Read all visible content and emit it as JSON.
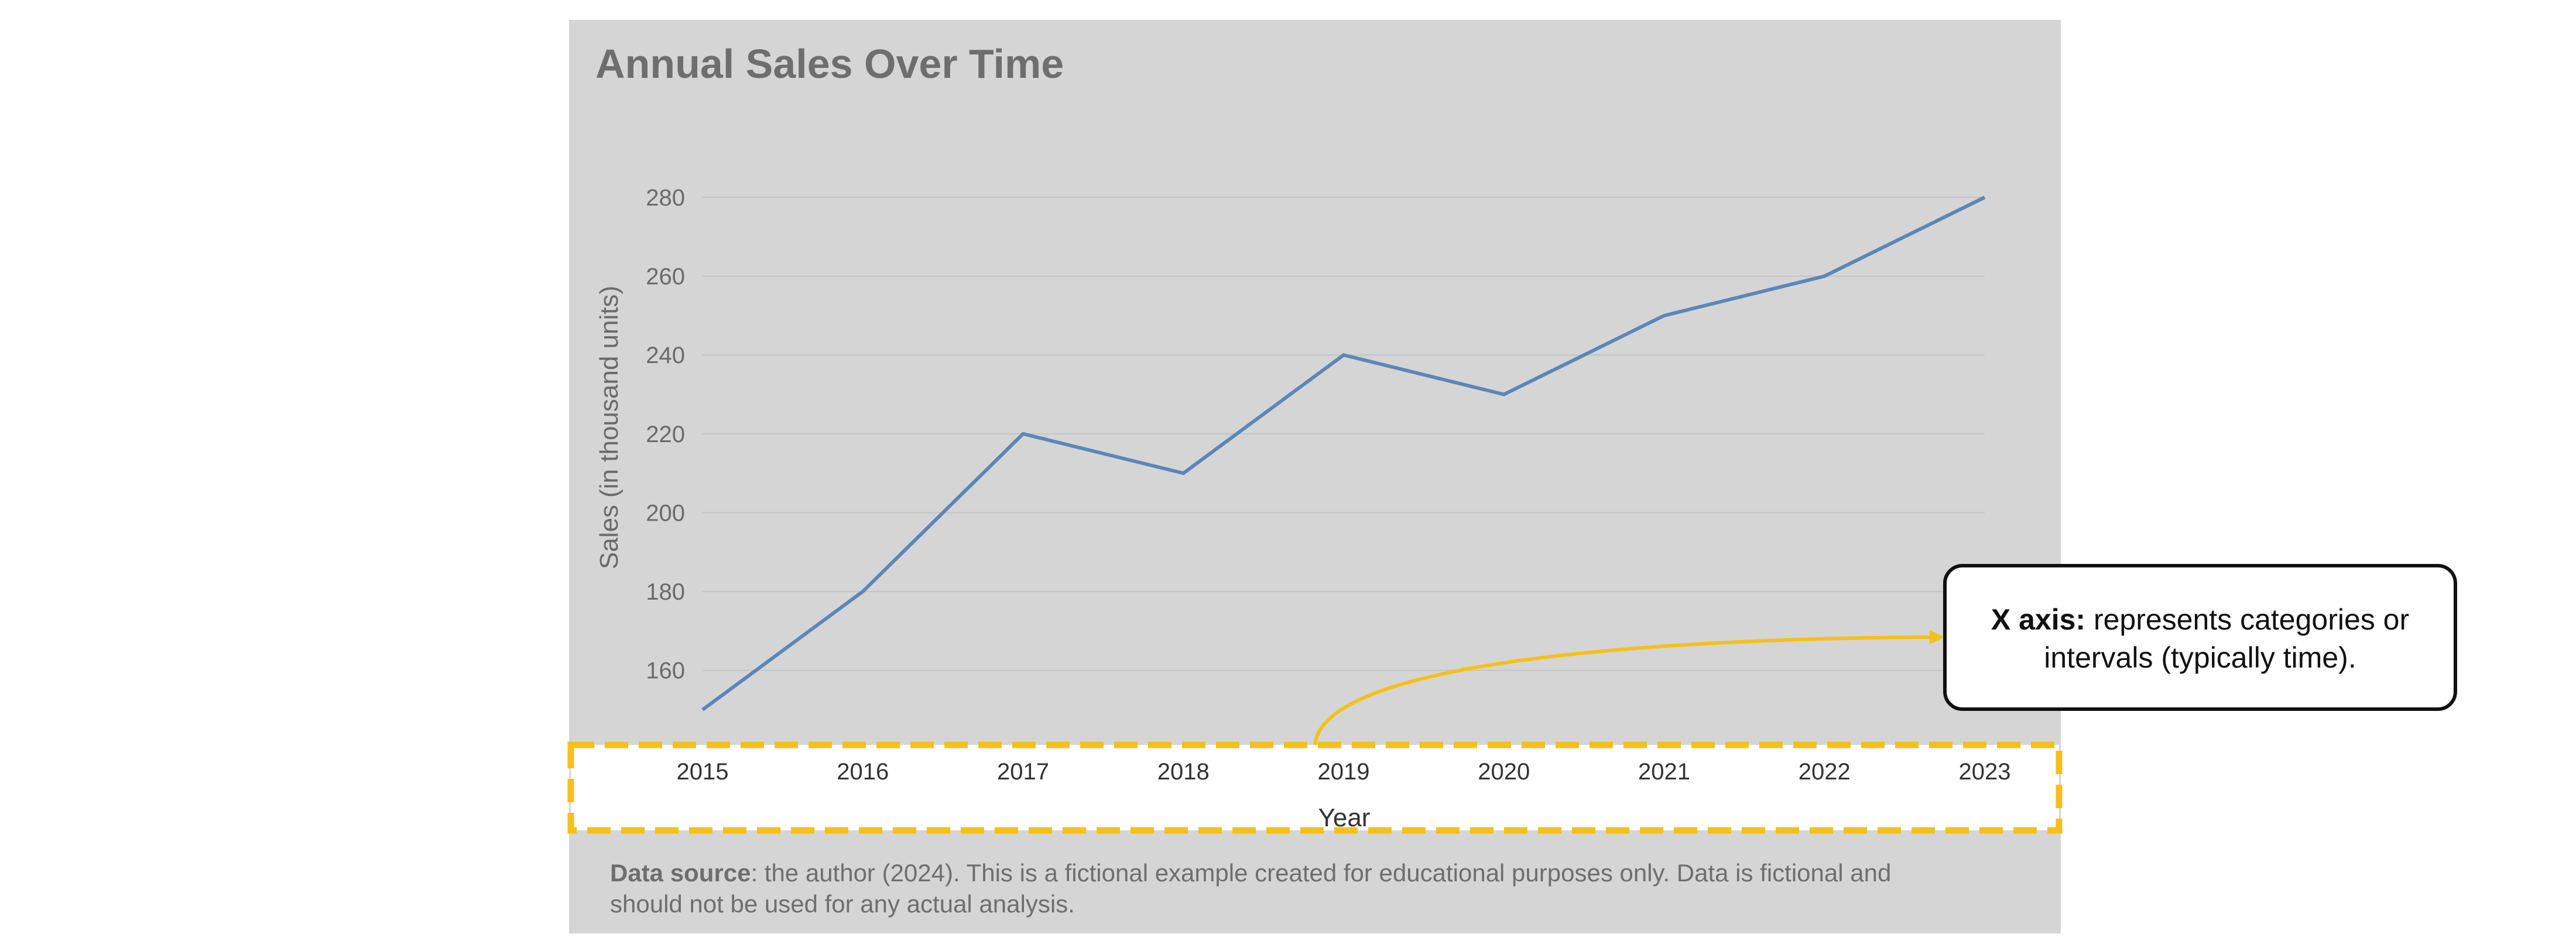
{
  "chart_data": {
    "type": "line",
    "title": "Annual Sales Over Time",
    "xlabel": "Year",
    "ylabel": "Sales (in thousand units)",
    "categories": [
      "2015",
      "2016",
      "2017",
      "2018",
      "2019",
      "2020",
      "2021",
      "2022",
      "2023"
    ],
    "series": [
      {
        "values": [
          150,
          180,
          220,
          210,
          240,
          230,
          250,
          260,
          280
        ]
      }
    ],
    "ylim": [
      150,
      280
    ],
    "yticks": [
      160,
      180,
      200,
      220,
      240,
      260,
      280
    ],
    "grid": true,
    "line_color": "#5b86b8"
  },
  "annotation": {
    "label_bold": "X axis:",
    "text_line1": " represents categories or",
    "text_line2": "intervals (typically time).",
    "highlight_color": "#f5c018"
  },
  "source": {
    "label_bold": "Data source",
    "text_line1": ": the author (2024). This is a fictional example created for educational purposes only. Data is fictional and",
    "text_line2": "should not be used for any actual analysis."
  }
}
